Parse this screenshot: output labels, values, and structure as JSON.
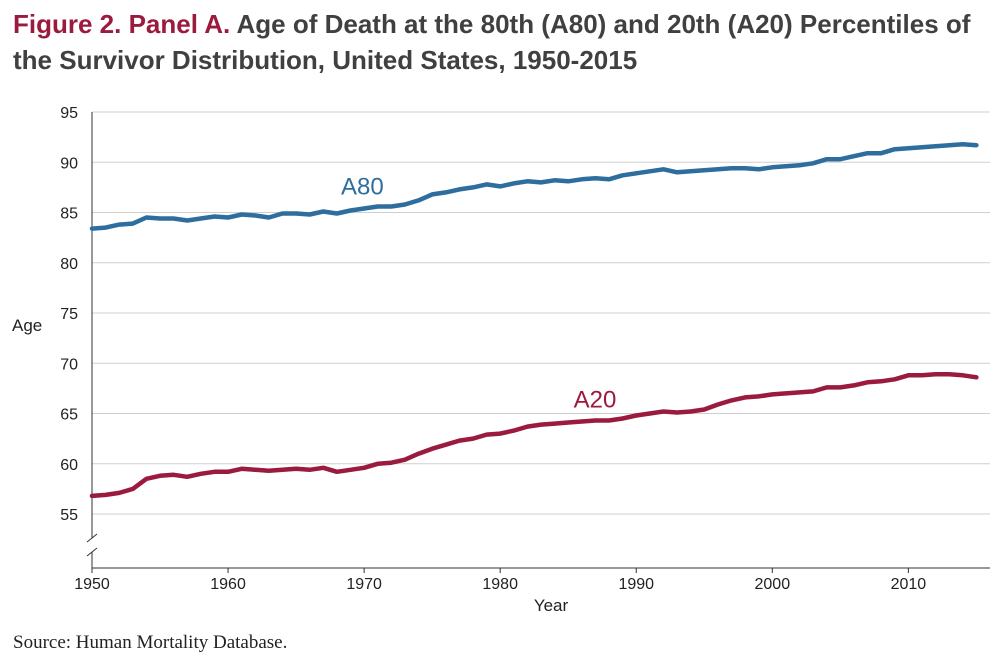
{
  "title": {
    "lead": "Figure 2. Panel A.",
    "text": "Age of Death at the 80th (A80) and 20th (A20) Percentiles of the Survivor Distribution, United States, 1950-2015"
  },
  "source": "Source: Human Mortality Database.",
  "colors": {
    "a80": "#2e6e9e",
    "a20": "#9b1b3f",
    "grid": "#cfcfcf",
    "title_lead": "#9b1b3f"
  },
  "chart_data": {
    "type": "line",
    "xlabel": "Year",
    "ylabel": "Age",
    "xlim": [
      1950,
      2016
    ],
    "ylim": [
      55,
      95
    ],
    "axis_break": true,
    "grid": "horizontal",
    "xticks": [
      1950,
      1960,
      1970,
      1980,
      1990,
      2000,
      2010
    ],
    "yticks": [
      55,
      60,
      65,
      70,
      75,
      80,
      85,
      90,
      95
    ],
    "x": [
      1950,
      1951,
      1952,
      1953,
      1954,
      1955,
      1956,
      1957,
      1958,
      1959,
      1960,
      1961,
      1962,
      1963,
      1964,
      1965,
      1966,
      1967,
      1968,
      1969,
      1970,
      1971,
      1972,
      1973,
      1974,
      1975,
      1976,
      1977,
      1978,
      1979,
      1980,
      1981,
      1982,
      1983,
      1984,
      1985,
      1986,
      1987,
      1988,
      1989,
      1990,
      1991,
      1992,
      1993,
      1994,
      1995,
      1996,
      1997,
      1998,
      1999,
      2000,
      2001,
      2002,
      2003,
      2004,
      2005,
      2006,
      2007,
      2008,
      2009,
      2010,
      2011,
      2012,
      2013,
      2014,
      2015
    ],
    "series": [
      {
        "name": "A80",
        "values": [
          83.4,
          83.5,
          83.8,
          83.9,
          84.5,
          84.4,
          84.4,
          84.2,
          84.4,
          84.6,
          84.5,
          84.8,
          84.7,
          84.5,
          84.9,
          84.9,
          84.8,
          85.1,
          84.9,
          85.2,
          85.4,
          85.6,
          85.6,
          85.8,
          86.2,
          86.8,
          87.0,
          87.3,
          87.5,
          87.8,
          87.6,
          87.9,
          88.1,
          88.0,
          88.2,
          88.1,
          88.3,
          88.4,
          88.3,
          88.7,
          88.9,
          89.1,
          89.3,
          89.0,
          89.1,
          89.2,
          89.3,
          89.4,
          89.4,
          89.3,
          89.5,
          89.6,
          89.7,
          89.9,
          90.3,
          90.3,
          90.6,
          90.9,
          90.9,
          91.3,
          91.4,
          91.5,
          91.6,
          91.7,
          91.8,
          91.7
        ]
      },
      {
        "name": "A20",
        "values": [
          56.8,
          56.9,
          57.1,
          57.5,
          58.5,
          58.8,
          58.9,
          58.7,
          59.0,
          59.2,
          59.2,
          59.5,
          59.4,
          59.3,
          59.4,
          59.5,
          59.4,
          59.6,
          59.2,
          59.4,
          59.6,
          60.0,
          60.1,
          60.4,
          61.0,
          61.5,
          61.9,
          62.3,
          62.5,
          62.9,
          63.0,
          63.3,
          63.7,
          63.9,
          64.0,
          64.1,
          64.2,
          64.3,
          64.3,
          64.5,
          64.8,
          65.0,
          65.2,
          65.1,
          65.2,
          65.4,
          65.9,
          66.3,
          66.6,
          66.7,
          66.9,
          67.0,
          67.1,
          67.2,
          67.6,
          67.6,
          67.8,
          68.1,
          68.2,
          68.4,
          68.8,
          68.8,
          68.9,
          68.9,
          68.8,
          68.6
        ]
      }
    ],
    "annotations": [
      {
        "text": "A80",
        "series": "A80"
      },
      {
        "text": "A20",
        "series": "A20"
      }
    ]
  }
}
